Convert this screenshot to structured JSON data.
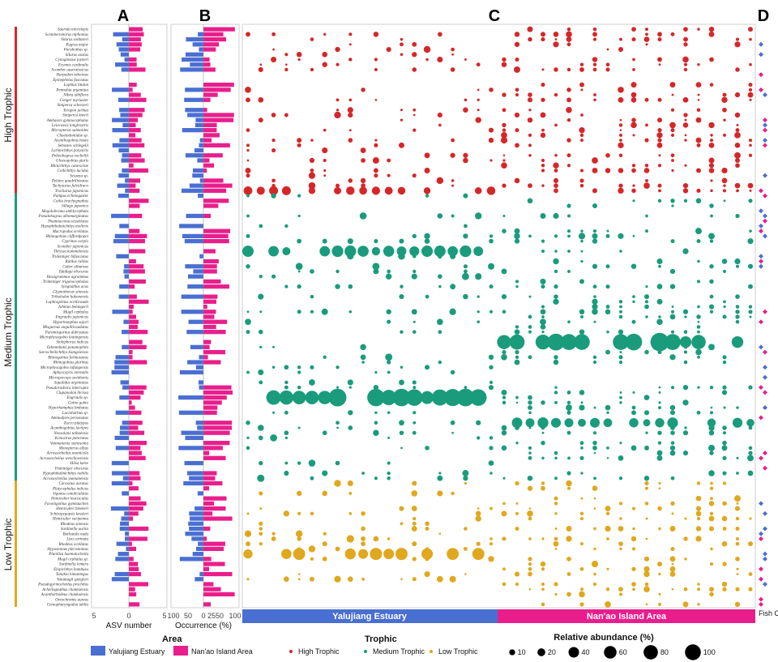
{
  "panels": {
    "a": "A",
    "b": "B",
    "c": "C",
    "d": "D"
  },
  "colors": {
    "yalujiang": "#4a6fd2",
    "nanao": "#e91e8c",
    "high": "#d62728",
    "medium": "#1a9c7c",
    "low": "#e0a81e"
  },
  "trophic_labels": {
    "high": "High Trophic",
    "medium": "Medium Trophic",
    "low": "Low Trophic"
  },
  "axis_a": {
    "label": "ASV number",
    "ticks": [
      "5",
      "0",
      "5"
    ]
  },
  "axis_b": {
    "label": "Occurrence (%)",
    "ticks": [
      "100",
      "50",
      "0",
      "25",
      "50",
      "100"
    ]
  },
  "strips": {
    "yalujiang": "Yalujiang Estuary",
    "nanao": "Nan'ao Island Area",
    "d_label": "Fish Catch"
  },
  "legend": {
    "area_title": "Area",
    "area_items": [
      "Yalujiang Estuary",
      "Nan'ao Island Area"
    ],
    "trophic_title": "Trophic",
    "trophic_items": [
      "High Trophic",
      "Medium Trophic",
      "Low Trophic"
    ],
    "size_title": "Relative abundance (%)",
    "size_items": [
      "10",
      "20",
      "40",
      "60",
      "80",
      "100"
    ]
  },
  "chart_data": {
    "type": "bubble-matrix with diverging bars",
    "groups": [
      {
        "trophic": "high",
        "species": [
          "Saurida microlepis",
          "Scomberomorus niphonius",
          "Silurus soldatovi",
          "Pagrus major",
          "Parabothus sp.",
          "Silurus asotus",
          "Cynoglossus joyneri",
          "Evynnis cardinalis",
          "Scomber australasicus",
          "Harpadon nehereus",
          "Epinephelus fasciatus",
          "Lophius litulon",
          "Pennahia argentata",
          "Nibea albiflora",
          "Conger myriaster",
          "Siniperca scherzeri",
          "Terapon jarbua",
          "Siniperca knerii",
          "Ambassis gymnocephalus",
          "Leiocassis longirostris",
          "Micropterus salmoides",
          "Chaetodontidae sp.",
          "Acanthogobius hasta",
          "Sebastes schlegelii",
          "Larimichthys polyactis",
          "Pelteobagrus vachellii",
          "Glossogobius giuris",
          "Rhinichthys cataractae",
          "Collichthys lucidus",
          "Sciaena sp.",
          "Pelates quadrilineatus",
          "Tachysurus fulvidraco",
          "Trachurus japonicus"
        ]
      },
      {
        "trophic": "medium",
        "species": [
          "Pampus echinogaster",
          "Coilia brachygnathus",
          "Sillago japonica",
          "Megalobrama amblycephala",
          "Pseudobagrus albomarginatus",
          "Thamnaconus tessellatus",
          "Hypophthalmichthys molitrix",
          "Macropodus ocellatus",
          "Rhinogobius cliffordpopei",
          "Cyprinus carpio",
          "Scomber japonicus",
          "Thryssa kammalensis",
          "Tridentiger bifasciatus",
          "Rutilus rutilus",
          "Culter alburnus",
          "Takifugu obscurus",
          "Hexagrammos agrammus",
          "Tridentiger trigonocephalus",
          "Syngnathus acus",
          "Glyptothorax sinensis",
          "Tribolodon hakonensis",
          "Lophiogobius ocellicauda",
          "Johnius belangerii",
          "Mugil cephalus",
          "Engraulis japonicus",
          "Hyporhamphus sajori",
          "Misgurnus anguillicaudatus",
          "Paramisgurnus dabryanus",
          "Microphysogobio kiatingensis",
          "Stolephorus indicus",
          "Odontobutis potamophila",
          "Sarcocheilichthys kiangsiensis",
          "Rhinogobius formosanus",
          "Rhinogobius giurinus",
          "Microphysogobio tafangensis",
          "Aphyocypris normalis",
          "Micropercops swinhonis",
          "Squalidus argentatus",
          "Pseudorasbora interrupta",
          "Clupanodon thrissa",
          "Engraulis sp.",
          "Gobio gobio",
          "Hyporhamphus limbatus",
          "Luciobarbus sp.",
          "Ammodytes personatus",
          "Zacco platypus",
          "Acanthogobius lactipes",
          "Neosalanx taihuensis",
          "Konosirus punctatus",
          "Vanmanenia stenosoma",
          "Monopterus albus",
          "Acrossocheilus monticola",
          "Acrossocheilus wenchowensis",
          "Hilsa kelee",
          "Tridentiger obscurus",
          "Hypophthalmichthys nobilis",
          "Acrossocheilus yunnanensis"
        ]
      },
      {
        "trophic": "low",
        "species": [
          "Carassius auratus",
          "Platycephalus indicus",
          "Siganus canaliculatus",
          "Hemiculter leucisculus",
          "Favonigobius gymnauchen",
          "Hemiculter bleekeri",
          "Schizopygopsis kessleri",
          "Hemiculter varipenna",
          "Rhodeus sinensis",
          "Sardinella aurita",
          "Barbatula nuda",
          "Liza carinata",
          "Rhodeus ocellatus",
          "Hypostomus plecostomus",
          "Planiliza haematocheila",
          "Mugil cephalus sp.",
          "Sardinella lemuru",
          "Elopichthys bambusa",
          "Tanakia himantegus",
          "Valamugil speigleri",
          "Pseudogyrinocheilus prochilus",
          "Acheilognathus chankaensis",
          "Acanthorhodeus chankaensis",
          "Oreochromis aureus",
          "Ctenopharyngodon idella"
        ]
      }
    ],
    "asv_number_range": [
      -5,
      5
    ],
    "occurrence_range": [
      -100,
      100
    ],
    "n_sites_yalujiang": 20,
    "n_sites_nanao": 20,
    "featured_abundance": [
      {
        "species": "Trachurus japonicus",
        "area": "Yalujiang Estuary",
        "max_relative_abundance": 20
      },
      {
        "species": "Thryssa kammalensis",
        "area": "Yalujiang Estuary",
        "max_relative_abundance": 35
      },
      {
        "species": "Stolephorus indicus",
        "area": "Nan'ao Island Area",
        "max_relative_abundance": 100
      },
      {
        "species": "Engraulis sp.",
        "area": "Yalujiang Estuary",
        "max_relative_abundance": 100
      },
      {
        "species": "Zacco platypus",
        "area": "Nan'ao Island Area",
        "max_relative_abundance": 30
      },
      {
        "species": "Planiliza haematocheila",
        "area": "Yalujiang Estuary",
        "max_relative_abundance": 40
      }
    ]
  }
}
